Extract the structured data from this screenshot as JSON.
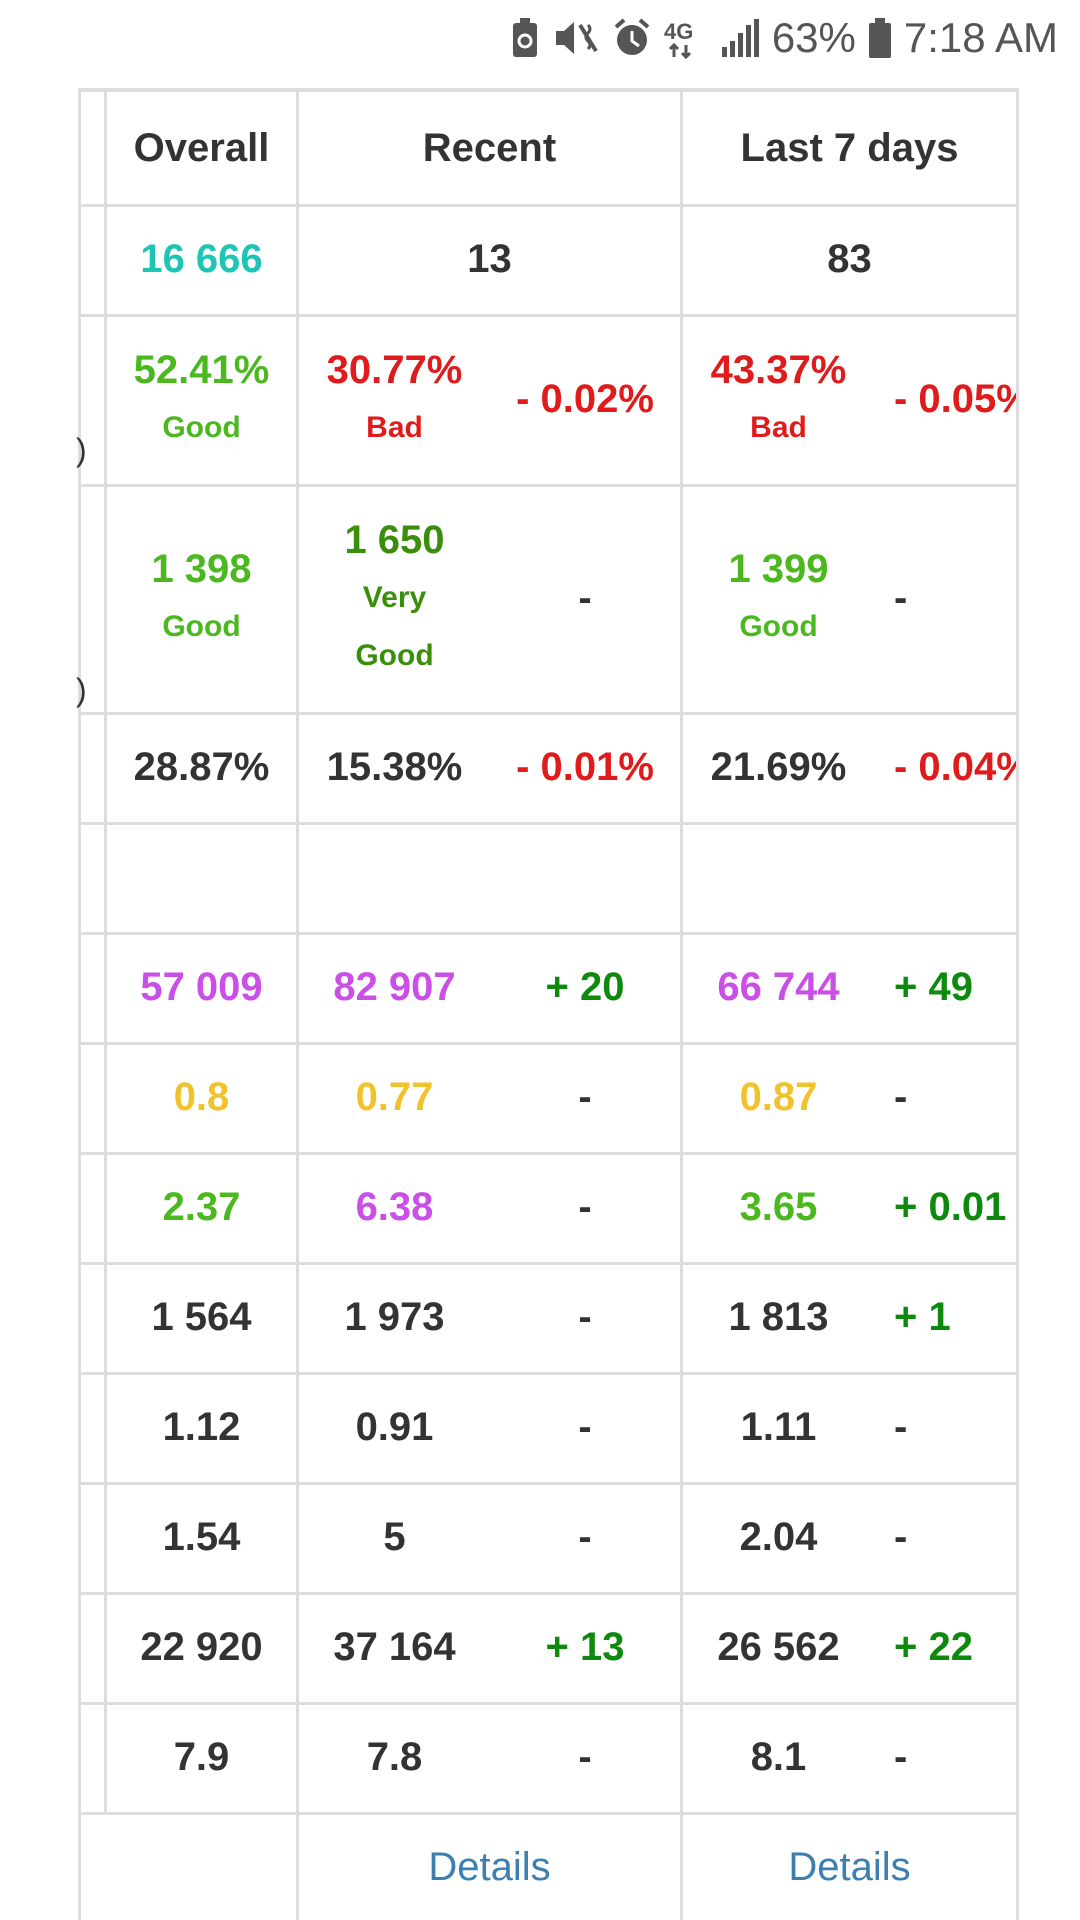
{
  "status": {
    "battery_percent": "63%",
    "time": "7:18 AM",
    "network": "4G LTE"
  },
  "headers": [
    "Overall",
    "Recent",
    "Last 7 days"
  ],
  "rows": [
    {
      "overall": {
        "v": "16 666",
        "c": "teal"
      },
      "recent": {
        "v": "13",
        "c": "dark"
      },
      "week": {
        "v": "83",
        "c": "dark"
      }
    },
    {
      "overall": {
        "v": "52.41%",
        "s": "Good",
        "c": "green"
      },
      "recent": {
        "v": "30.77%",
        "s": "Bad",
        "c": "red"
      },
      "recent_delta": {
        "v": "- 0.02%",
        "c": "red"
      },
      "week": {
        "v": "43.37%",
        "s": "Bad",
        "c": "red"
      },
      "week_delta": {
        "v": "- 0.05%",
        "c": "red"
      }
    },
    {
      "overall": {
        "v": "1 398",
        "s": "Good",
        "c": "green"
      },
      "recent": {
        "v": "1 650",
        "s": "Very",
        "s2": "Good",
        "c": "dkgreen"
      },
      "recent_delta": {
        "v": "-",
        "c": "dark"
      },
      "week": {
        "v": "1 399",
        "s": "Good",
        "c": "green"
      },
      "week_delta": {
        "v": "-",
        "c": "dark"
      }
    },
    {
      "overall": {
        "v": "28.87%",
        "c": "dark"
      },
      "recent": {
        "v": "15.38%",
        "c": "dark"
      },
      "recent_delta": {
        "v": "- 0.01%",
        "c": "red"
      },
      "week": {
        "v": "21.69%",
        "c": "dark"
      },
      "week_delta": {
        "v": "- 0.04%",
        "c": "red"
      }
    },
    {
      "empty": true
    },
    {
      "overall": {
        "v": "57 009",
        "c": "purple"
      },
      "recent": {
        "v": "82 907",
        "c": "purple"
      },
      "recent_delta": {
        "v": "+ 20",
        "c": "plus"
      },
      "week": {
        "v": "66 744",
        "c": "purple"
      },
      "week_delta": {
        "v": "+ 49",
        "c": "plus"
      }
    },
    {
      "overall": {
        "v": "0.8",
        "c": "yellow"
      },
      "recent": {
        "v": "0.77",
        "c": "yellow"
      },
      "recent_delta": {
        "v": "-",
        "c": "dark"
      },
      "week": {
        "v": "0.87",
        "c": "yellow"
      },
      "week_delta": {
        "v": "-",
        "c": "dark"
      }
    },
    {
      "overall": {
        "v": "2.37",
        "c": "green"
      },
      "recent": {
        "v": "6.38",
        "c": "purple"
      },
      "recent_delta": {
        "v": "-",
        "c": "dark"
      },
      "week": {
        "v": "3.65",
        "c": "green"
      },
      "week_delta": {
        "v": "+ 0.01",
        "c": "plus"
      }
    },
    {
      "overall": {
        "v": "1 564",
        "c": "dark"
      },
      "recent": {
        "v": "1 973",
        "c": "dark"
      },
      "recent_delta": {
        "v": "-",
        "c": "dark"
      },
      "week": {
        "v": "1 813",
        "c": "dark"
      },
      "week_delta": {
        "v": "+ 1",
        "c": "plus"
      }
    },
    {
      "overall": {
        "v": "1.12",
        "c": "dark"
      },
      "recent": {
        "v": "0.91",
        "c": "dark"
      },
      "recent_delta": {
        "v": "-",
        "c": "dark"
      },
      "week": {
        "v": "1.11",
        "c": "dark"
      },
      "week_delta": {
        "v": "-",
        "c": "dark"
      }
    },
    {
      "overall": {
        "v": "1.54",
        "c": "dark"
      },
      "recent": {
        "v": "5",
        "c": "dark"
      },
      "recent_delta": {
        "v": "-",
        "c": "dark"
      },
      "week": {
        "v": "2.04",
        "c": "dark"
      },
      "week_delta": {
        "v": "-",
        "c": "dark"
      }
    },
    {
      "overall": {
        "v": "22 920",
        "c": "dark"
      },
      "recent": {
        "v": "37 164",
        "c": "dark"
      },
      "recent_delta": {
        "v": "+ 13",
        "c": "plus"
      },
      "week": {
        "v": "26 562",
        "c": "dark"
      },
      "week_delta": {
        "v": "+ 22",
        "c": "plus"
      }
    },
    {
      "overall": {
        "v": "7.9",
        "c": "dark"
      },
      "recent": {
        "v": "7.8",
        "c": "dark"
      },
      "recent_delta": {
        "v": "-",
        "c": "dark"
      },
      "week": {
        "v": "8.1",
        "c": "dark"
      },
      "week_delta": {
        "v": "-",
        "c": "dark"
      }
    }
  ],
  "details_label": "Details",
  "cut_off_left": ")"
}
